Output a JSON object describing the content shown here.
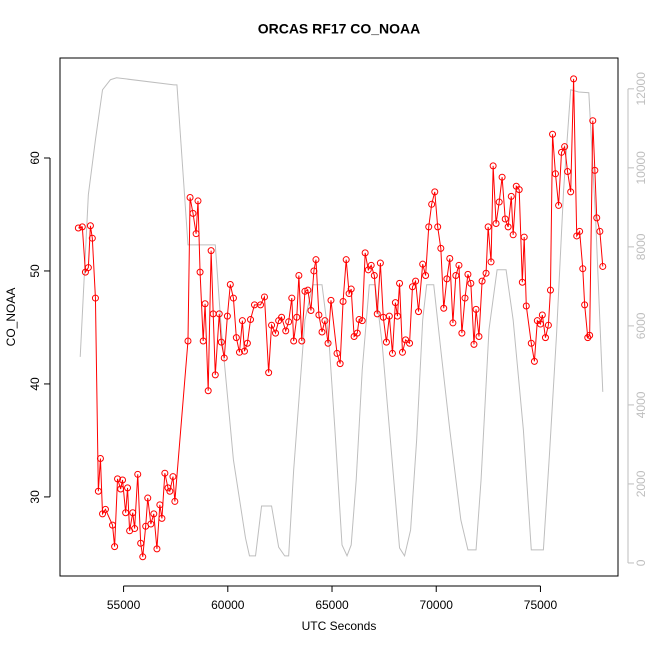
{
  "chart_data": {
    "type": "line",
    "title": "ORCAS RF17 CO_NOAA",
    "xlabel": "UTC Seconds",
    "ylabel": "CO_NOAA",
    "xlim": [
      51950,
      78720
    ],
    "ylim": [
      23.0,
      68.85
    ],
    "y2lim": [
      -330,
      12780
    ],
    "xticks": [
      55000,
      60000,
      65000,
      70000,
      75000
    ],
    "yticks": [
      30,
      40,
      50,
      60
    ],
    "y2ticks": [
      0,
      2000,
      4000,
      6000,
      8000,
      10000,
      12000
    ],
    "series": [
      {
        "color": "#ff0000",
        "marker": "circle",
        "x": [
          52830,
          53020,
          53170,
          53310,
          53410,
          53500,
          53650,
          53790,
          53890,
          53990,
          54130,
          54470,
          54570,
          54710,
          54860,
          54950,
          55100,
          55190,
          55290,
          55440,
          55530,
          55680,
          55820,
          55920,
          56060,
          56160,
          56310,
          56450,
          56600,
          56740,
          56840,
          56980,
          57130,
          57220,
          57370,
          57460,
          58090,
          58190,
          58330,
          58480,
          58570,
          58670,
          58820,
          58910,
          59060,
          59200,
          59300,
          59400,
          59590,
          59690,
          59830,
          59980,
          60120,
          60270,
          60410,
          60560,
          60700,
          60800,
          60940,
          61090,
          61280,
          61570,
          61760,
          61960,
          62100,
          62290,
          62440,
          62580,
          62780,
          62920,
          63070,
          63160,
          63310,
          63410,
          63550,
          63700,
          63840,
          63990,
          64130,
          64230,
          64370,
          64520,
          64660,
          64810,
          64950,
          65240,
          65390,
          65530,
          65680,
          65820,
          65920,
          66060,
          66210,
          66300,
          66450,
          66590,
          66740,
          66880,
          67030,
          67170,
          67320,
          67460,
          67610,
          67750,
          67900,
          68040,
          68140,
          68240,
          68380,
          68530,
          68720,
          68860,
          69010,
          69150,
          69350,
          69490,
          69640,
          69780,
          69930,
          70070,
          70220,
          70360,
          70510,
          70650,
          70800,
          70940,
          71090,
          71230,
          71380,
          71520,
          71660,
          71810,
          71910,
          72050,
          72200,
          72390,
          72490,
          72630,
          72730,
          72870,
          73020,
          73160,
          73310,
          73450,
          73600,
          73690,
          73840,
          73980,
          74130,
          74220,
          74320,
          74560,
          74710,
          74850,
          75000,
          75090,
          75240,
          75380,
          75480,
          75580,
          75720,
          75870,
          76010,
          76160,
          76300,
          76450,
          76590,
          76740,
          76880,
          77030,
          77120,
          77270,
          77360,
          77510,
          77610,
          77700,
          77850,
          77990
        ],
        "values": [
          53.8,
          53.9,
          49.9,
          50.3,
          54.0,
          52.9,
          47.6,
          30.5,
          33.4,
          28.5,
          28.9,
          27.5,
          25.6,
          31.6,
          30.7,
          31.5,
          28.6,
          30.8,
          27.0,
          28.6,
          27.2,
          32.0,
          25.9,
          24.7,
          27.4,
          29.9,
          27.6,
          28.5,
          25.4,
          29.3,
          28.1,
          32.1,
          30.8,
          30.5,
          31.8,
          29.6,
          43.8,
          56.5,
          55.1,
          53.3,
          56.2,
          49.9,
          43.8,
          47.1,
          39.4,
          51.8,
          46.2,
          40.8,
          46.2,
          43.7,
          42.3,
          46.0,
          48.8,
          47.6,
          44.1,
          42.8,
          45.6,
          42.9,
          43.6,
          45.7,
          47.0,
          47.0,
          47.7,
          41.0,
          45.2,
          44.5,
          45.6,
          45.9,
          44.7,
          45.5,
          47.6,
          43.8,
          45.9,
          49.6,
          43.8,
          48.2,
          48.3,
          46.5,
          50.0,
          51.0,
          46.1,
          44.6,
          45.6,
          43.6,
          47.4,
          42.7,
          41.8,
          47.3,
          51.0,
          48.0,
          48.4,
          44.2,
          44.5,
          45.7,
          45.6,
          51.6,
          50.1,
          50.5,
          49.6,
          46.2,
          50.7,
          45.9,
          43.7,
          46.0,
          42.7,
          47.2,
          46.0,
          48.9,
          42.8,
          43.9,
          43.6,
          48.6,
          49.1,
          46.4,
          50.6,
          49.6,
          53.9,
          55.9,
          57.0,
          53.9,
          52.0,
          46.7,
          49.3,
          51.1,
          45.4,
          49.6,
          50.5,
          44.5,
          47.6,
          49.7,
          48.9,
          43.5,
          46.6,
          44.2,
          49.1,
          49.8,
          53.9,
          50.8,
          59.3,
          54.2,
          56.1,
          58.3,
          54.6,
          53.9,
          56.6,
          53.2,
          57.5,
          57.2,
          49.0,
          53.0,
          46.9,
          43.6,
          42.0,
          45.6,
          45.3,
          46.1,
          44.1,
          45.2,
          48.3,
          62.1,
          58.6,
          55.8,
          60.5,
          61.0,
          58.8,
          57.0,
          67.0,
          53.1,
          53.5,
          50.2,
          47.0,
          44.1,
          44.3,
          63.3,
          58.9,
          54.7,
          53.5,
          50.4
        ]
      },
      {
        "color": "#bebebe",
        "axis": "y2",
        "x": [
          52920,
          53310,
          53650,
          53990,
          54370,
          54660,
          57420,
          57560,
          58090,
          59400,
          59690,
          60270,
          60850,
          61040,
          61330,
          61620,
          62100,
          62440,
          62730,
          62920,
          63160,
          63700,
          64080,
          64520,
          64850,
          65140,
          65480,
          65720,
          65920,
          66160,
          66450,
          66790,
          67070,
          67410,
          67800,
          68240,
          68480,
          68770,
          69060,
          69350,
          69540,
          69880,
          70220,
          70650,
          71180,
          71520,
          71910,
          72150,
          72530,
          72920,
          73350,
          73690,
          74180,
          74560,
          75140,
          75430,
          75770,
          76110,
          76450,
          76830,
          77320,
          77650,
          77990
        ],
        "values": [
          5215,
          9320,
          10710,
          11975,
          12230,
          12280,
          12100,
          12100,
          8050,
          8050,
          5900,
          2610,
          630,
          180,
          180,
          1440,
          1440,
          400,
          180,
          180,
          2350,
          6150,
          7040,
          7040,
          5650,
          3370,
          455,
          180,
          455,
          2100,
          4890,
          7040,
          7040,
          5520,
          3110,
          380,
          180,
          835,
          3110,
          6150,
          7040,
          7040,
          5390,
          3370,
          1090,
          330,
          330,
          2100,
          5900,
          7420,
          7420,
          6150,
          3370,
          330,
          330,
          2730,
          5770,
          9440,
          11975,
          11920,
          11900,
          8680,
          4330
        ]
      }
    ]
  }
}
